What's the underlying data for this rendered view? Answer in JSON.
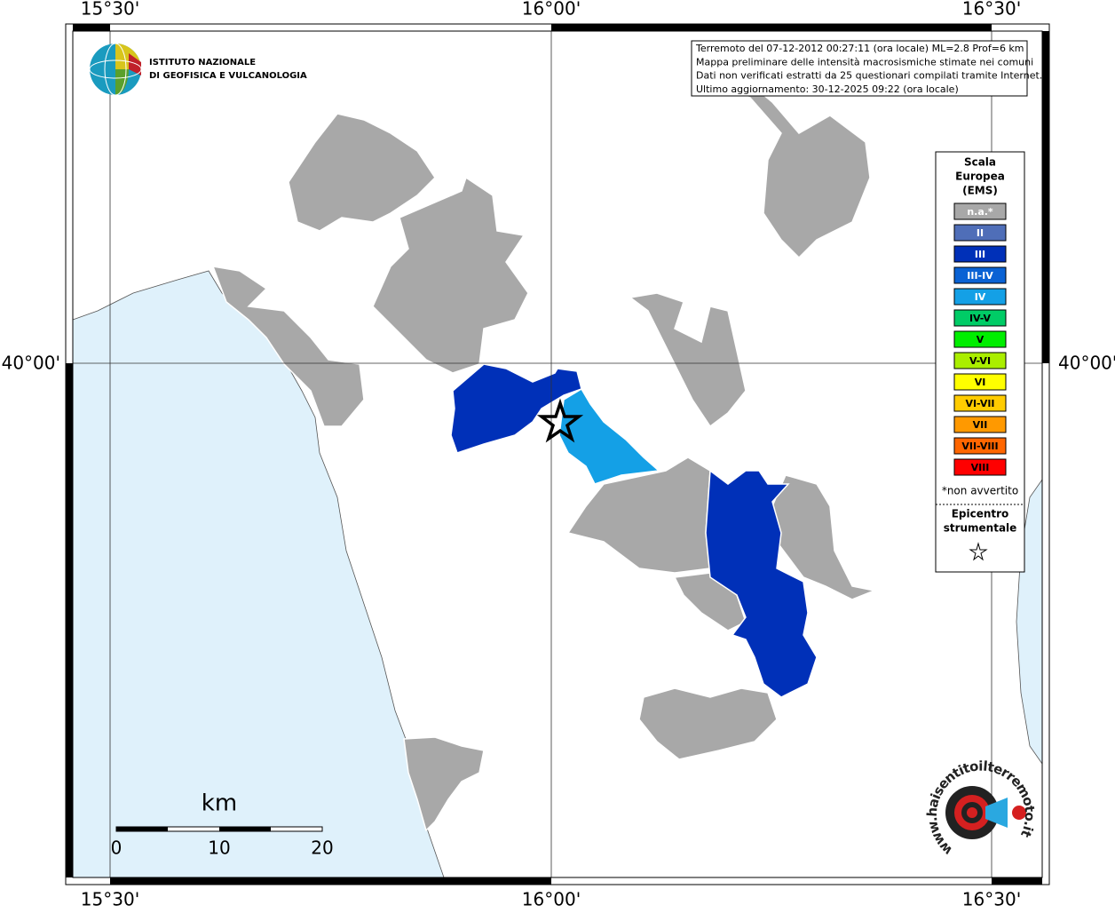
{
  "axis_labels": {
    "top": [
      "15°30'",
      "16°00'",
      "16°30'"
    ],
    "bottom": [
      "15°30'",
      "16°00'",
      "16°30'"
    ],
    "left": "40°00'",
    "right": "40°00'"
  },
  "info": [
    "Terremoto del 07-12-2012 00:27:11 (ora locale) ML=2.8 Prof=6 km",
    "Mappa preliminare delle intensità macrosismiche stimate nei comuni",
    "Dati non verificati estratti da 25 questionari compilati tramite Internet.",
    "Ultimo aggiornamento: 30-12-2025 09:22 (ora locale)"
  ],
  "logo": [
    "ISTITUTO NAZIONALE",
    "DI GEOFISICA E VULCANOLOGIA"
  ],
  "legend": {
    "title": [
      "Scala",
      "Europea",
      "(EMS)"
    ],
    "classes": [
      {
        "label": "n.a.*",
        "color": "#a8a8a8"
      },
      {
        "label": "II",
        "color": "#4f6eb8"
      },
      {
        "label": "III",
        "color": "#0030b8"
      },
      {
        "label": "III-IV",
        "color": "#0a62d4"
      },
      {
        "label": "IV",
        "color": "#14a0e6"
      },
      {
        "label": "IV-V",
        "color": "#00cc66"
      },
      {
        "label": "V",
        "color": "#00ee00"
      },
      {
        "label": "V-VI",
        "color": "#aaee00"
      },
      {
        "label": "VI",
        "color": "#ffff00"
      },
      {
        "label": "VI-VII",
        "color": "#ffcc00"
      },
      {
        "label": "VII",
        "color": "#ff9900"
      },
      {
        "label": "VII-VIII",
        "color": "#ff6600"
      },
      {
        "label": "VIII",
        "color": "#ff0000"
      }
    ],
    "note": "*non avvertito",
    "epicenter": [
      "Epicentro",
      "strumentale"
    ]
  },
  "scale_bar": {
    "unit": "km",
    "ticks": [
      0,
      10,
      20
    ]
  },
  "watermark": "www.haisentitoilterremoto.it"
}
